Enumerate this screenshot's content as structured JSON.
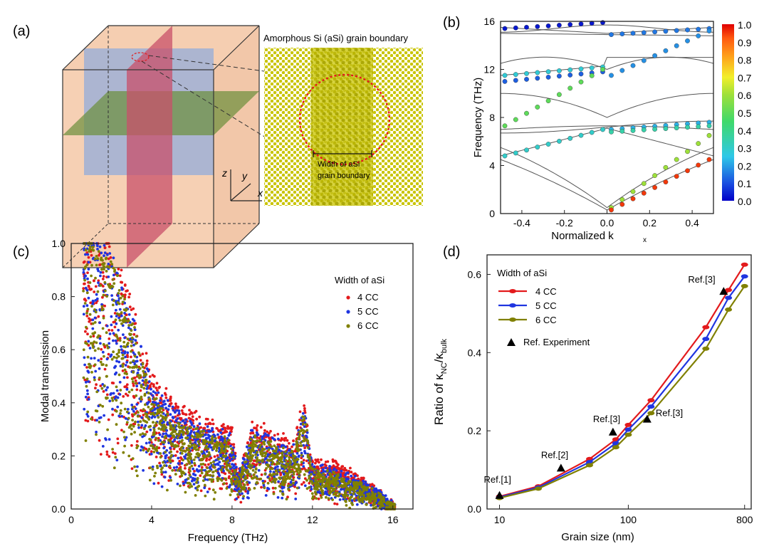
{
  "panels": {
    "a": {
      "label": "(a)",
      "gb_title": "Amorphous Si (aSi) grain boundary",
      "width_label_1": "Width of aSi",
      "width_label_2": "grain boundary",
      "axes": {
        "x": "x",
        "y": "y",
        "z": "z"
      },
      "colors": {
        "peach": "#f4c9a8",
        "blue": "#9fb0d6",
        "red": "#c8506a",
        "green": "#6b8f3a",
        "crystal": "#c9c400"
      }
    },
    "b": {
      "label": "(b)"
    },
    "c": {
      "label": "(c)"
    },
    "d": {
      "label": "(d)"
    }
  },
  "chart_data": [
    {
      "id": "b",
      "type": "scatter",
      "xlabel": "Normalized k",
      "xlabel_sub": "x",
      "ylabel": "Frequency (THz)",
      "xlim": [
        -0.5,
        0.5
      ],
      "ylim": [
        0,
        16
      ],
      "xticks": [
        "-0.4",
        "-0.2",
        "0.0",
        "0.2",
        "0.4"
      ],
      "xtick_values": [
        -0.4,
        -0.2,
        0.0,
        0.2,
        0.4
      ],
      "yticks": [
        "0",
        "4",
        "8",
        "12",
        "16"
      ],
      "ytick_values": [
        0,
        4,
        8,
        12,
        16
      ],
      "colorbar": {
        "min": 0.0,
        "max": 1.0,
        "ticks": [
          "1.0",
          "0.9",
          "0.8",
          "0.7",
          "0.6",
          "0.5",
          "0.4",
          "0.3",
          "0.2",
          "0.1",
          "0.0"
        ]
      },
      "dispersion_lines_color": "#555555",
      "branches": [
        {
          "x_start": -0.48,
          "y_start": 15.4,
          "x_end": -0.02,
          "y_end": 15.9,
          "t": 0.03
        },
        {
          "x_start": 0.02,
          "y_start": 14.9,
          "x_end": 0.48,
          "y_end": 15.4,
          "t": 0.15
        },
        {
          "x_start": -0.48,
          "y_start": 11.5,
          "x_end": -0.02,
          "y_end": 12.2,
          "t": 0.28
        },
        {
          "x_start": -0.48,
          "y_start": 11.0,
          "x_end": -0.02,
          "y_end": 11.8,
          "t": 0.12
        },
        {
          "x_start": 0.02,
          "y_start": 11.5,
          "x_end": 0.48,
          "y_end": 15.2,
          "t": 0.18
        },
        {
          "x_start": -0.48,
          "y_start": 7.3,
          "x_end": -0.02,
          "y_end": 12.0,
          "t": 0.5
        },
        {
          "x_start": -0.48,
          "y_start": 4.8,
          "x_end": -0.02,
          "y_end": 7.0,
          "t": 0.3
        },
        {
          "x_start": 0.02,
          "y_start": 7.0,
          "x_end": 0.48,
          "y_end": 7.6,
          "t": 0.22
        },
        {
          "x_start": 0.02,
          "y_start": 6.8,
          "x_end": 0.48,
          "y_end": 7.3,
          "t": 0.35
        },
        {
          "x_start": 0.02,
          "y_start": 0.5,
          "x_end": 0.48,
          "y_end": 6.5,
          "t": 0.6
        },
        {
          "x_start": 0.02,
          "y_start": 0.3,
          "x_end": 0.48,
          "y_end": 4.5,
          "t": 0.95
        }
      ]
    },
    {
      "id": "c",
      "type": "scatter",
      "xlabel": "Frequency (THz)",
      "ylabel": "Modal transmission",
      "xlim": [
        0,
        17
      ],
      "ylim": [
        0,
        1.0
      ],
      "xticks": [
        "0",
        "4",
        "8",
        "12",
        "16"
      ],
      "xtick_values": [
        0,
        4,
        8,
        12,
        16
      ],
      "yticks": [
        "0.0",
        "0.2",
        "0.4",
        "0.6",
        "0.8",
        "1.0"
      ],
      "ytick_values": [
        0,
        0.2,
        0.4,
        0.6,
        0.8,
        1.0
      ],
      "legend_title": "Width of aSi",
      "legend_position": "top-right",
      "series": [
        {
          "name": "4 CC",
          "color": "#e31a1c",
          "envelope": [
            [
              1,
              0.95
            ],
            [
              2,
              0.9
            ],
            [
              3,
              0.72
            ],
            [
              4,
              0.45
            ],
            [
              5,
              0.38
            ],
            [
              6,
              0.33
            ],
            [
              7,
              0.3
            ],
            [
              8,
              0.28
            ],
            [
              8.3,
              0.12
            ],
            [
              9,
              0.3
            ],
            [
              10,
              0.27
            ],
            [
              11,
              0.22
            ],
            [
              11.6,
              0.38
            ],
            [
              12,
              0.16
            ],
            [
              13,
              0.16
            ],
            [
              14,
              0.12
            ],
            [
              15,
              0.08
            ],
            [
              16,
              0.01
            ]
          ]
        },
        {
          "name": "5 CC",
          "color": "#1f35e0",
          "envelope": [
            [
              1,
              0.95
            ],
            [
              2,
              0.88
            ],
            [
              3,
              0.68
            ],
            [
              4,
              0.42
            ],
            [
              5,
              0.34
            ],
            [
              6,
              0.3
            ],
            [
              7,
              0.27
            ],
            [
              8,
              0.25
            ],
            [
              8.3,
              0.1
            ],
            [
              9,
              0.27
            ],
            [
              10,
              0.24
            ],
            [
              11,
              0.2
            ],
            [
              11.6,
              0.35
            ],
            [
              12,
              0.14
            ],
            [
              13,
              0.14
            ],
            [
              14,
              0.1
            ],
            [
              15,
              0.07
            ],
            [
              16,
              0.01
            ]
          ]
        },
        {
          "name": "6 CC",
          "color": "#808000",
          "envelope": [
            [
              1,
              0.95
            ],
            [
              2,
              0.86
            ],
            [
              3,
              0.65
            ],
            [
              4,
              0.4
            ],
            [
              5,
              0.3
            ],
            [
              6,
              0.27
            ],
            [
              7,
              0.25
            ],
            [
              8,
              0.23
            ],
            [
              8.3,
              0.09
            ],
            [
              9,
              0.25
            ],
            [
              10,
              0.22
            ],
            [
              11,
              0.18
            ],
            [
              11.6,
              0.33
            ],
            [
              12,
              0.13
            ],
            [
              13,
              0.12
            ],
            [
              14,
              0.09
            ],
            [
              15,
              0.06
            ],
            [
              16,
              0.0
            ]
          ]
        }
      ]
    },
    {
      "id": "d",
      "type": "line",
      "xlabel": "Grain size (nm)",
      "ylabel_pre": "Ratio of κ",
      "ylabel_sub1": "NC",
      "ylabel_mid": "/κ",
      "ylabel_sub2": "bulk",
      "xscale": "log",
      "xlim": [
        8,
        900
      ],
      "ylim": [
        0,
        0.65
      ],
      "xticks": [
        "10",
        "100",
        "800"
      ],
      "xtick_values": [
        10,
        100,
        800
      ],
      "yticks": [
        "0.0",
        "0.2",
        "0.4",
        "0.6"
      ],
      "ytick_values": [
        0,
        0.2,
        0.4,
        0.6
      ],
      "legend_title": "Width of aSi",
      "legend_position": "top-left",
      "x": [
        10,
        20,
        50,
        80,
        100,
        150,
        400,
        600,
        800
      ],
      "series": [
        {
          "name": "4 CC",
          "color": "#e31a1c",
          "values": [
            0.032,
            0.058,
            0.128,
            0.178,
            0.215,
            0.278,
            0.465,
            0.56,
            0.625
          ]
        },
        {
          "name": "5 CC",
          "color": "#1f35e0",
          "values": [
            0.03,
            0.055,
            0.12,
            0.168,
            0.203,
            0.262,
            0.435,
            0.54,
            0.595
          ]
        },
        {
          "name": "6 CC",
          "color": "#808000",
          "values": [
            0.028,
            0.052,
            0.112,
            0.158,
            0.19,
            0.245,
            0.41,
            0.51,
            0.57
          ]
        }
      ],
      "experiment": {
        "name": "Ref. Experiment",
        "color": "#000000",
        "points": [
          {
            "x": 10,
            "y": 0.035,
            "label": "Ref.[1]"
          },
          {
            "x": 30,
            "y": 0.105,
            "label": "Ref.[2]"
          },
          {
            "x": 76,
            "y": 0.197,
            "label": "Ref.[3]"
          },
          {
            "x": 140,
            "y": 0.23,
            "label": "Ref.[3]"
          },
          {
            "x": 550,
            "y": 0.557,
            "label": "Ref.[3]"
          }
        ]
      }
    }
  ]
}
